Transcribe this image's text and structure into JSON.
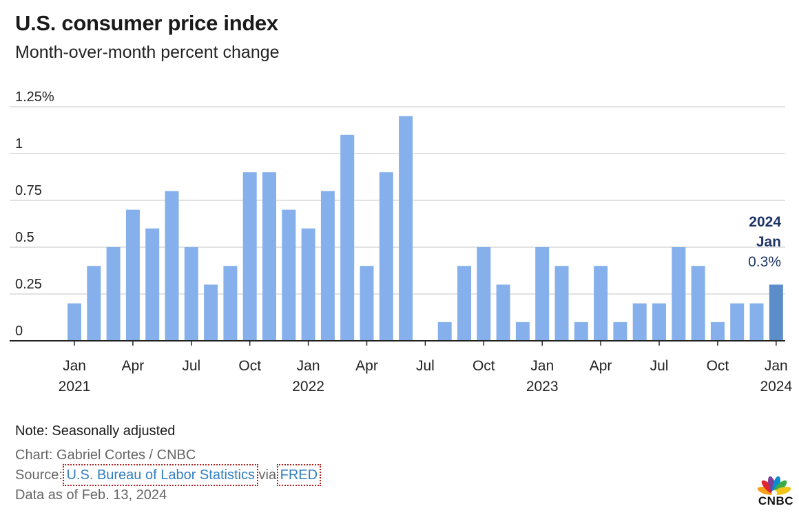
{
  "title": "U.S. consumer price index",
  "subtitle": "Month-over-month percent change",
  "chart_data": {
    "type": "bar",
    "title": "U.S. consumer price index",
    "subtitle": "Month-over-month percent change",
    "ylim": [
      0,
      1.25
    ],
    "y_ticks": [
      {
        "value": 0,
        "label": "0"
      },
      {
        "value": 0.25,
        "label": "0.25"
      },
      {
        "value": 0.5,
        "label": "0.5"
      },
      {
        "value": 0.75,
        "label": "0.75"
      },
      {
        "value": 1,
        "label": "1"
      },
      {
        "value": 1.25,
        "label": "1.25%"
      }
    ],
    "grid": true,
    "categories": [
      "2021-01",
      "2021-02",
      "2021-03",
      "2021-04",
      "2021-05",
      "2021-06",
      "2021-07",
      "2021-08",
      "2021-09",
      "2021-10",
      "2021-11",
      "2021-12",
      "2022-01",
      "2022-02",
      "2022-03",
      "2022-04",
      "2022-05",
      "2022-06",
      "2022-07",
      "2022-08",
      "2022-09",
      "2022-10",
      "2022-11",
      "2022-12",
      "2023-01",
      "2023-02",
      "2023-03",
      "2023-04",
      "2023-05",
      "2023-06",
      "2023-07",
      "2023-08",
      "2023-09",
      "2023-10",
      "2023-11",
      "2023-12",
      "2024-01"
    ],
    "values": [
      0.2,
      0.4,
      0.5,
      0.7,
      0.6,
      0.8,
      0.5,
      0.3,
      0.4,
      0.9,
      0.9,
      0.7,
      0.6,
      0.8,
      1.1,
      0.4,
      0.9,
      1.2,
      0.0,
      0.1,
      0.4,
      0.5,
      0.3,
      0.1,
      0.5,
      0.4,
      0.1,
      0.4,
      0.1,
      0.2,
      0.2,
      0.5,
      0.4,
      0.1,
      0.2,
      0.2,
      0.3
    ],
    "x_ticks": [
      {
        "index": 0,
        "label": "Jan",
        "year": "2021"
      },
      {
        "index": 3,
        "label": "Apr",
        "year": ""
      },
      {
        "index": 6,
        "label": "Jul",
        "year": ""
      },
      {
        "index": 9,
        "label": "Oct",
        "year": ""
      },
      {
        "index": 12,
        "label": "Jan",
        "year": "2022"
      },
      {
        "index": 15,
        "label": "Apr",
        "year": ""
      },
      {
        "index": 18,
        "label": "Jul",
        "year": ""
      },
      {
        "index": 21,
        "label": "Oct",
        "year": ""
      },
      {
        "index": 24,
        "label": "Jan",
        "year": "2023"
      },
      {
        "index": 27,
        "label": "Apr",
        "year": ""
      },
      {
        "index": 30,
        "label": "Jul",
        "year": ""
      },
      {
        "index": 33,
        "label": "Oct",
        "year": ""
      },
      {
        "index": 36,
        "label": "Jan",
        "year": "2024"
      }
    ],
    "highlight": {
      "index": 36,
      "year": "2024",
      "month": "Jan",
      "value_label": "0.3%"
    },
    "colors": {
      "bar": "#85b0eb",
      "highlight_bar": "#5b8ec9",
      "annotation": "#1e3566",
      "grid": "#d9d9d9",
      "axis": "#222222"
    }
  },
  "footer": {
    "note": "Note: Seasonally adjusted",
    "credit": "Chart: Gabriel Cortes / CNBC",
    "source_prefix": "Source: ",
    "source_link": "U.S. Bureau of Labor Statistics",
    "source_via": " via ",
    "fred_link": "FRED",
    "as_of": "Data as of Feb. 13, 2024"
  },
  "logo": {
    "text": "CNBC",
    "icon": "nbc-peacock-icon"
  }
}
